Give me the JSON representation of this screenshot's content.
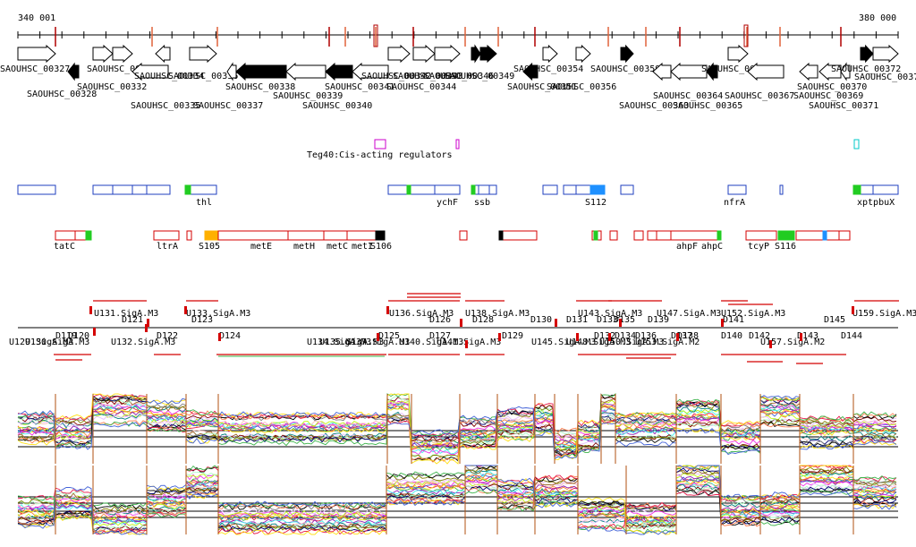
{
  "ruler": {
    "start_label": "340 001",
    "end_label": "380 000"
  },
  "genes_top": [
    {
      "id": "g327",
      "label": "SAOUHSC_00327",
      "dir": "right",
      "fill": "white"
    },
    {
      "id": "g328",
      "label": "SAOUHSC_00328",
      "dir": "left",
      "fill": "black"
    },
    {
      "id": "g332",
      "label": "SAOUHSC_00332",
      "dir": "right",
      "fill": "white"
    },
    {
      "id": "g333",
      "label": "SAOUHSC_00333",
      "dir": "right",
      "fill": "white"
    },
    {
      "id": "g334",
      "label": "SAOUHSC_00334",
      "dir": "left",
      "fill": "white"
    },
    {
      "id": "g335",
      "label": "SAOUHSC_00335",
      "dir": "left",
      "fill": "white"
    },
    {
      "id": "g336",
      "label": "SAOUHSC_00336",
      "dir": "right",
      "fill": "white"
    },
    {
      "id": "g337",
      "label": "SAOUHSC_00337",
      "dir": "left",
      "fill": "white"
    },
    {
      "id": "g338",
      "label": "SAOUHSC_00338",
      "dir": "left",
      "fill": "black"
    },
    {
      "id": "g339",
      "label": "SAOUHSC_00339",
      "dir": "left",
      "fill": "white"
    },
    {
      "id": "g340",
      "label": "SAOUHSC_00340",
      "dir": "left",
      "fill": "black"
    },
    {
      "id": "g341",
      "label": "SAOUHSC_00341",
      "dir": "left",
      "fill": "white"
    },
    {
      "id": "g342",
      "label": "SAOUHSC_00342",
      "dir": "right",
      "fill": "white"
    },
    {
      "id": "g343",
      "label": "SAOUHSC_00343",
      "dir": "right",
      "fill": "white"
    },
    {
      "id": "g344",
      "label": "SAOUHSC_00344",
      "dir": "right",
      "fill": "white"
    },
    {
      "id": "g346",
      "label": "SAOUHSC_00346",
      "dir": "right",
      "fill": "black"
    },
    {
      "id": "g349",
      "label": "SAOUHSC_00349",
      "dir": "right",
      "fill": "black"
    },
    {
      "id": "g351",
      "label": "SAOUHSC_00351",
      "dir": "left",
      "fill": "black"
    },
    {
      "id": "g354",
      "label": "SAOUHSC_00354",
      "dir": "right",
      "fill": "white"
    },
    {
      "id": "g356",
      "label": "SAOUHSC_00356",
      "dir": "right",
      "fill": "white"
    },
    {
      "id": "g359",
      "label": "SAOUHSC_00359",
      "dir": "right",
      "fill": "black"
    },
    {
      "id": "g363",
      "label": "SAOUHSC_00363",
      "dir": "left",
      "fill": "white"
    },
    {
      "id": "g364",
      "label": "SAOUHSC_00364",
      "dir": "left",
      "fill": "white"
    },
    {
      "id": "g365",
      "label": "SAOUHSC_00365",
      "dir": "left",
      "fill": "black"
    },
    {
      "id": "g366",
      "label": "SAOUHSC_00366",
      "dir": "right",
      "fill": "white"
    },
    {
      "id": "g367",
      "label": "SAOUHSC_00367",
      "dir": "left",
      "fill": "white"
    },
    {
      "id": "g369",
      "label": "SAOUHSC_00369",
      "dir": "left",
      "fill": "white"
    },
    {
      "id": "g370",
      "label": "SAOUHSC_00370",
      "dir": "left",
      "fill": "white"
    },
    {
      "id": "g371",
      "label": "SAOUHSC_00371",
      "dir": "left",
      "fill": "white"
    },
    {
      "id": "g372",
      "label": "SAOUHSC_00372",
      "dir": "right",
      "fill": "black"
    },
    {
      "id": "g373",
      "label": "SAOUHSC_00373",
      "dir": "right",
      "fill": "white"
    }
  ],
  "regulator_label": "Teg40:Cis-acting regulators",
  "blue_track_labels": [
    "thl",
    "ychF",
    "ssb",
    "S112",
    "nfrA",
    "xptpbuX"
  ],
  "red_track_labels": [
    "tatC",
    "ltrA",
    "S105",
    "metE",
    "metH",
    "metC",
    "metI",
    "S106",
    "ahpF",
    "ahpC",
    "tcyP",
    "S116"
  ],
  "segments_upper": [
    "U131.SigA.M3",
    "U133.SigA.M3",
    "U136.SigA.M3",
    "U138.SigA.M3",
    "U143.SigA.M3",
    "U147.SigA.M3",
    "U152.SigA.M3",
    "U159.SigA.M3"
  ],
  "segments_d_upper": [
    "D121",
    "D123",
    "D126",
    "D128",
    "D130",
    "D131",
    "D133",
    "D135",
    "D139",
    "D141",
    "D145"
  ],
  "segments_lower": [
    "U129.SigA.M3",
    "U130.SigA.M3",
    "U132.SigA.M3",
    "U134.SigA.M3",
    "U135.SigA.M3",
    "U137.SigA.M3",
    "U140.SigA.M3",
    "U141.SigA.M3",
    "U145.SigA.M3",
    "U148.SigA.M3",
    "U150.SigA.M3",
    "U153.SigA.M2",
    "U157.SigA.M2"
  ],
  "segments_d_lower": [
    "D119",
    "D120",
    "D122",
    "D124",
    "D125",
    "D127",
    "D129",
    "D132",
    "D134",
    "D136",
    "D137",
    "D138",
    "D140",
    "D142",
    "D143",
    "D144"
  ],
  "colors": {
    "ruler_tick": "#e0623a",
    "ruler_mark": "#b00000",
    "gene_black": "#000000",
    "track_blue": "#1f3fbf",
    "track_red": "#d40000",
    "green": "#22cc22",
    "orange": "#ffb000",
    "cyan_fill": "#1e90ff",
    "magenta": "#cc00cc",
    "cyan_outline": "#00c8c8",
    "segment_green": "#3cb44b"
  }
}
